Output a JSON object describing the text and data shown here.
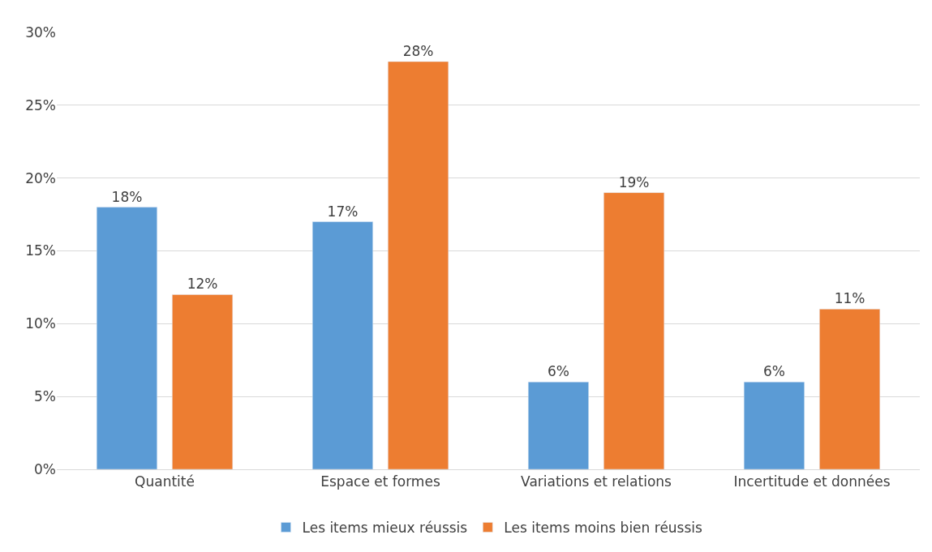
{
  "chart_data": {
    "type": "bar",
    "categories": [
      "Quantité",
      "Espace et formes",
      "Variations et relations",
      "Incertitude et données"
    ],
    "series": [
      {
        "name": "Les items mieux réussis",
        "color": "#5b9bd5",
        "values": [
          18,
          17,
          6,
          6
        ],
        "value_labels": [
          "18%",
          "17%",
          "6%",
          "6%"
        ]
      },
      {
        "name": "Les items moins bien réussis",
        "color": "#ed7d31",
        "values": [
          12,
          28,
          19,
          11
        ],
        "value_labels": [
          "12%",
          "28%",
          "19%",
          "11%"
        ]
      }
    ],
    "ylim": [
      0,
      30
    ],
    "yticks": [
      {
        "value": 0,
        "label": "0%"
      },
      {
        "value": 5,
        "label": "5%"
      },
      {
        "value": 10,
        "label": "10%"
      },
      {
        "value": 15,
        "label": "15%"
      },
      {
        "value": 20,
        "label": "20%"
      },
      {
        "value": 25,
        "label": "25%"
      },
      {
        "value": 30,
        "label": "30%"
      }
    ],
    "grid": "y",
    "legend": "bottom"
  }
}
